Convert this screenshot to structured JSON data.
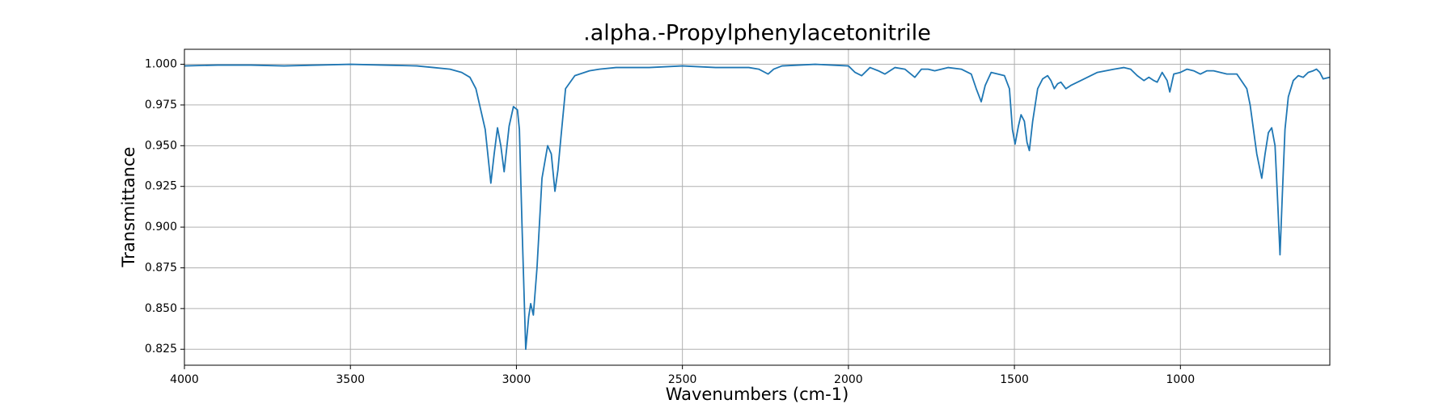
{
  "chart_data": {
    "type": "line",
    "title": ".alpha.-Propylphenylacetonitrile",
    "x_label": "Wavenumbers (cm-1)",
    "y_label": "Transmittance",
    "xlim": [
      4000,
      550
    ],
    "ylim": [
      0.8152,
      1.0092
    ],
    "xticks": [
      4000,
      3500,
      3000,
      2500,
      2000,
      1500,
      1000
    ],
    "yticks": [
      {
        "value": 0.825,
        "label": "0.825"
      },
      {
        "value": 0.85,
        "label": "0.850"
      },
      {
        "value": 0.875,
        "label": "0.875"
      },
      {
        "value": 0.9,
        "label": "0.900"
      },
      {
        "value": 0.925,
        "label": "0.925"
      },
      {
        "value": 0.95,
        "label": "0.950"
      },
      {
        "value": 0.975,
        "label": "0.975"
      },
      {
        "value": 1.0,
        "label": "1.000"
      }
    ],
    "grid": true,
    "x": [
      4000,
      3900,
      3800,
      3700,
      3600,
      3500,
      3400,
      3300,
      3250,
      3200,
      3165,
      3140,
      3122,
      3094,
      3077,
      3067,
      3057,
      3047,
      3037,
      3022,
      3009,
      2997,
      2991,
      2983,
      2972,
      2963,
      2957,
      2949,
      2938,
      2923,
      2906,
      2895,
      2884,
      2875,
      2866,
      2852,
      2824,
      2780,
      2750,
      2700,
      2600,
      2500,
      2400,
      2300,
      2270,
      2242,
      2225,
      2200,
      2100,
      2000,
      1980,
      1960,
      1935,
      1910,
      1890,
      1860,
      1830,
      1800,
      1780,
      1760,
      1740,
      1700,
      1660,
      1630,
      1615,
      1600,
      1588,
      1570,
      1550,
      1530,
      1515,
      1506,
      1498,
      1488,
      1480,
      1470,
      1462,
      1455,
      1445,
      1430,
      1415,
      1400,
      1390,
      1380,
      1370,
      1360,
      1345,
      1330,
      1300,
      1250,
      1200,
      1170,
      1150,
      1130,
      1110,
      1095,
      1080,
      1070,
      1055,
      1040,
      1032,
      1020,
      1000,
      980,
      960,
      940,
      920,
      900,
      880,
      860,
      840,
      830,
      800,
      790,
      770,
      755,
      745,
      735,
      725,
      715,
      708,
      700,
      693,
      685,
      675,
      660,
      645,
      630,
      615,
      600,
      590,
      580,
      570,
      550
    ],
    "series": [
      {
        "name": "Transmittance",
        "color": "#1f77b4",
        "values": [
          0.999,
          0.9995,
          0.9995,
          0.999,
          0.9995,
          1.0,
          0.9995,
          0.999,
          0.998,
          0.997,
          0.995,
          0.992,
          0.985,
          0.96,
          0.927,
          0.945,
          0.961,
          0.95,
          0.934,
          0.962,
          0.974,
          0.972,
          0.96,
          0.9,
          0.825,
          0.845,
          0.853,
          0.846,
          0.875,
          0.93,
          0.95,
          0.945,
          0.922,
          0.935,
          0.955,
          0.985,
          0.993,
          0.996,
          0.997,
          0.998,
          0.998,
          0.999,
          0.998,
          0.998,
          0.997,
          0.994,
          0.997,
          0.999,
          1.0,
          0.999,
          0.995,
          0.993,
          0.998,
          0.996,
          0.994,
          0.998,
          0.997,
          0.992,
          0.997,
          0.997,
          0.996,
          0.998,
          0.997,
          0.994,
          0.985,
          0.977,
          0.987,
          0.995,
          0.994,
          0.993,
          0.985,
          0.96,
          0.951,
          0.962,
          0.969,
          0.965,
          0.952,
          0.947,
          0.965,
          0.985,
          0.991,
          0.993,
          0.99,
          0.985,
          0.988,
          0.989,
          0.985,
          0.987,
          0.99,
          0.995,
          0.997,
          0.998,
          0.997,
          0.993,
          0.99,
          0.992,
          0.99,
          0.989,
          0.995,
          0.99,
          0.983,
          0.994,
          0.995,
          0.997,
          0.996,
          0.994,
          0.996,
          0.996,
          0.995,
          0.994,
          0.994,
          0.994,
          0.985,
          0.975,
          0.945,
          0.93,
          0.945,
          0.958,
          0.961,
          0.95,
          0.92,
          0.883,
          0.92,
          0.96,
          0.98,
          0.99,
          0.993,
          0.992,
          0.995,
          0.996,
          0.997,
          0.995,
          0.991,
          0.992
        ]
      }
    ]
  }
}
